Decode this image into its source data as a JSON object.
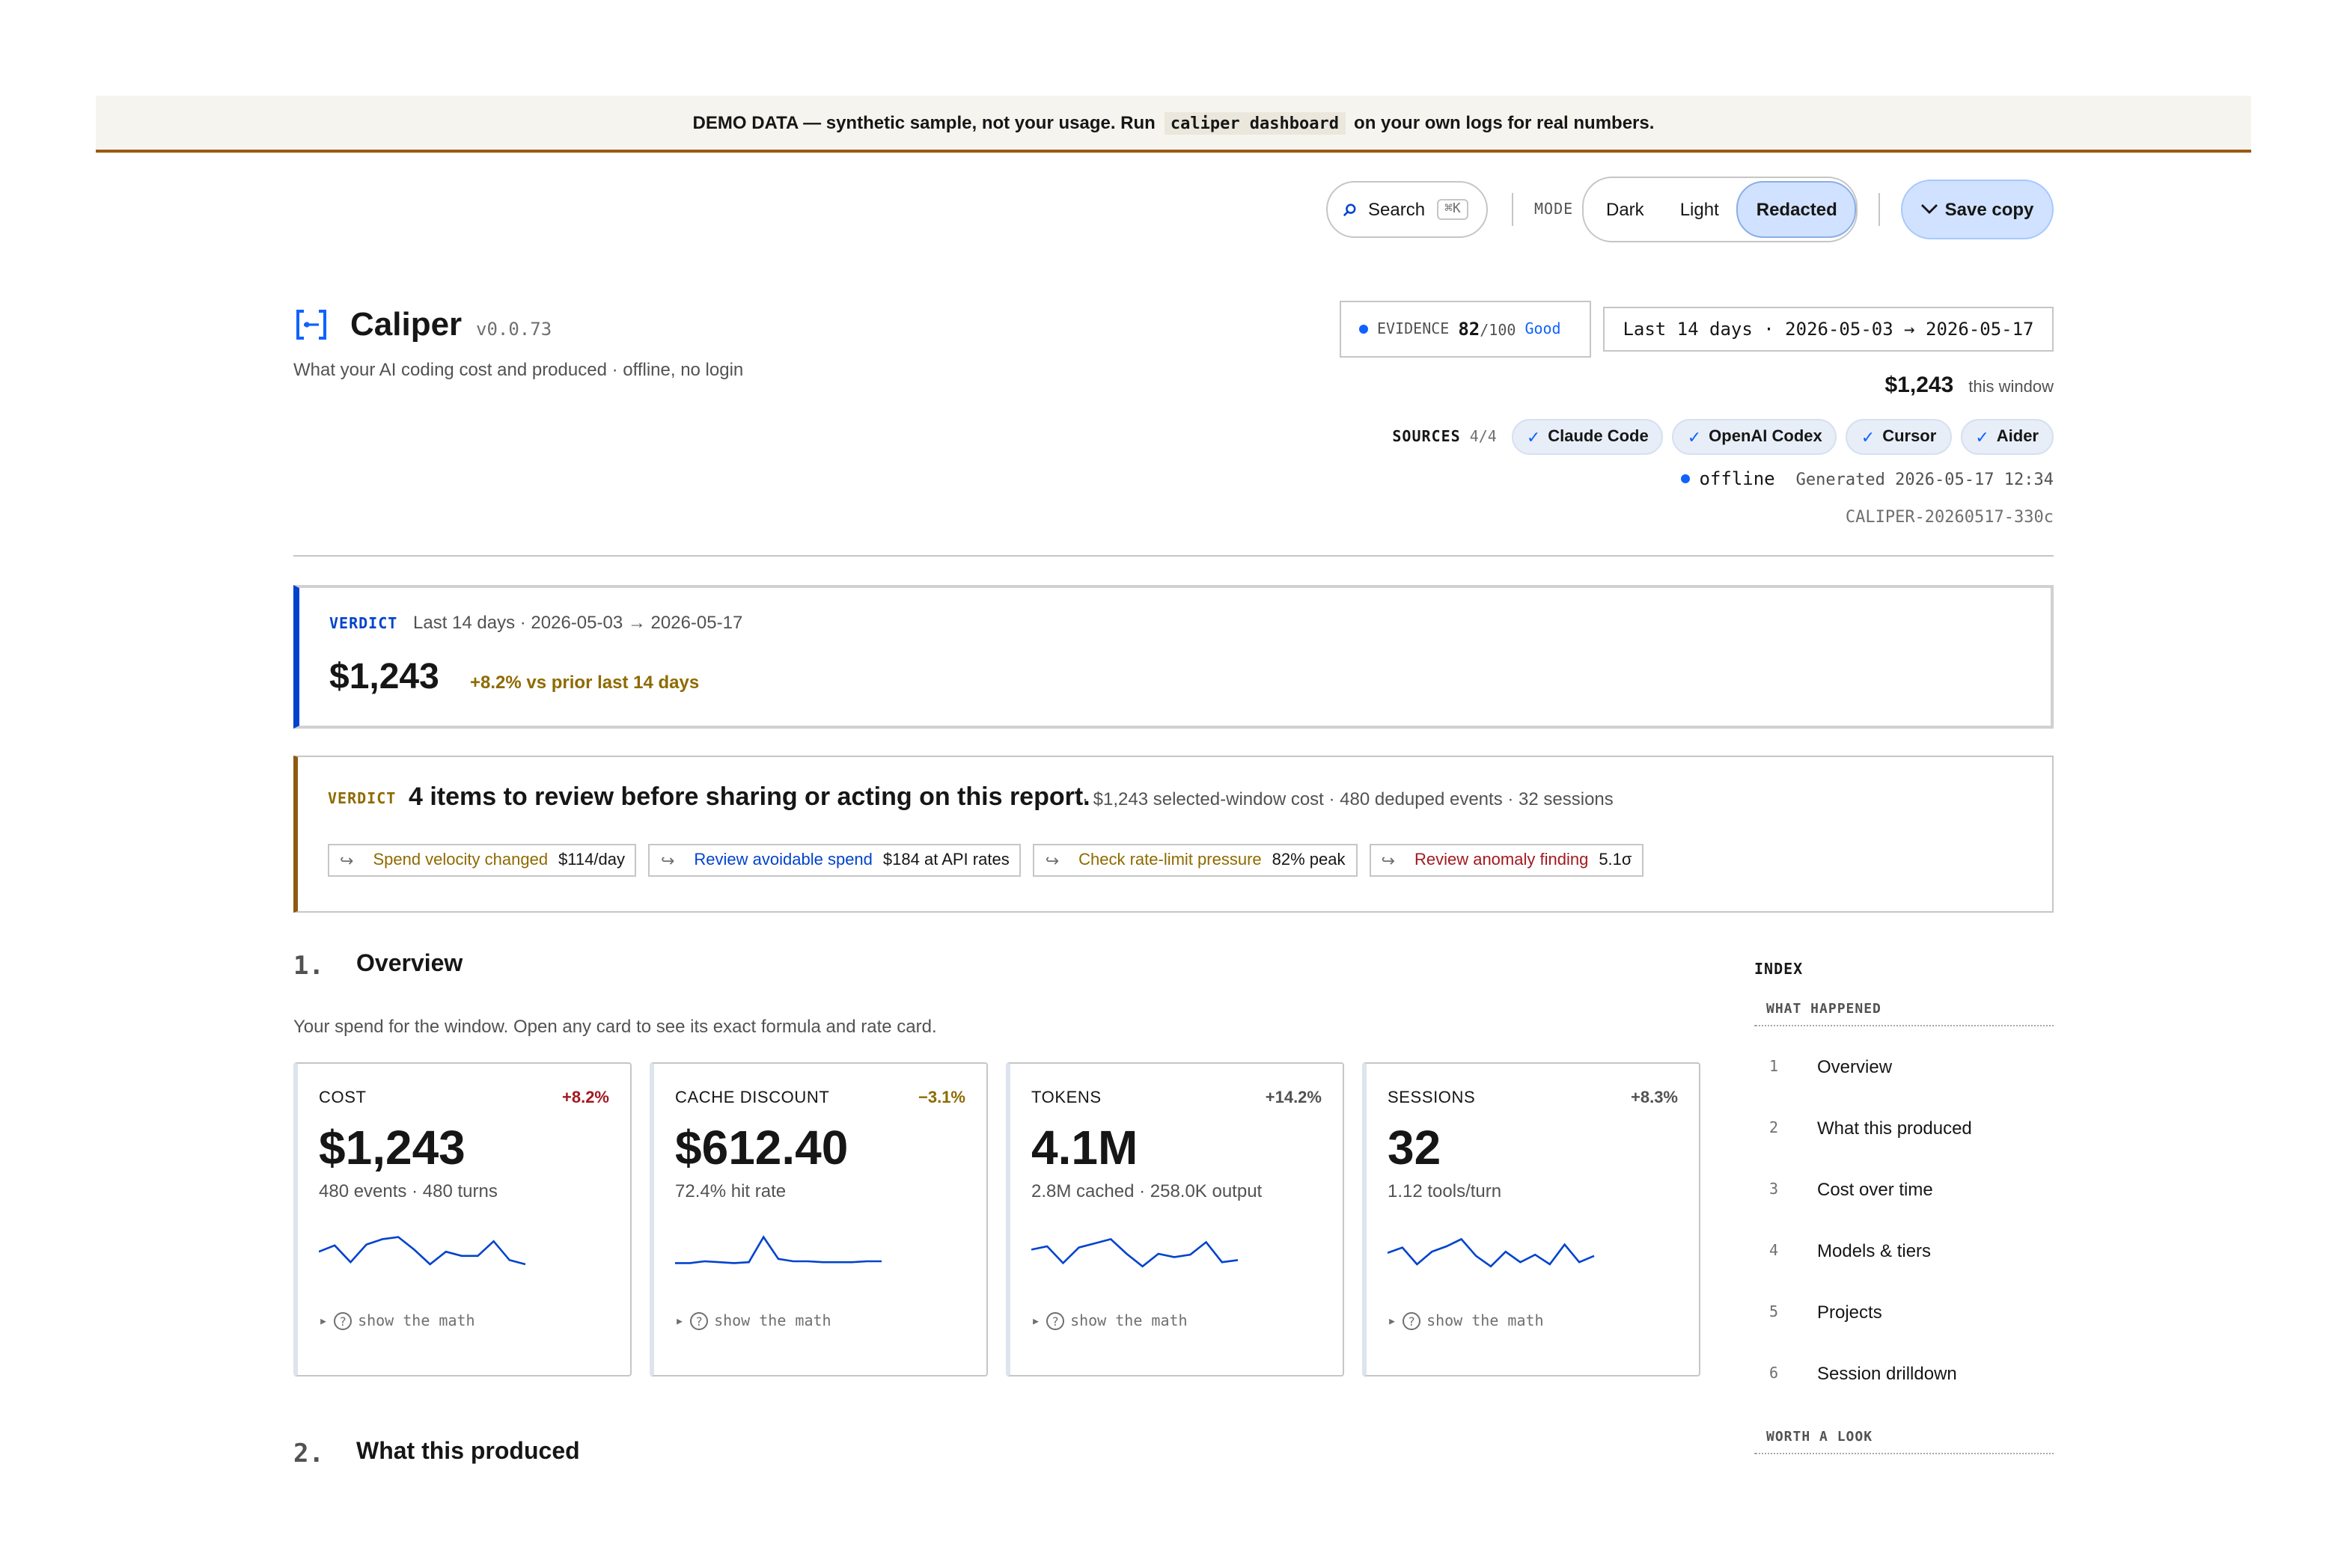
{
  "banner": {
    "prefix": "DEMO DATA — synthetic sample, not your usage. Run",
    "command": "caliper dashboard",
    "suffix": "on your own logs for real numbers."
  },
  "toolbar": {
    "search_label": "Search",
    "search_shortcut": "⌘K",
    "mode_label": "MODE",
    "modes": [
      "Dark",
      "Light",
      "Redacted"
    ],
    "active_mode": "Redacted",
    "save_label": "Save copy"
  },
  "header": {
    "app_name": "Caliper",
    "version": "v0.0.73",
    "tagline": "What your AI coding cost and produced · offline, no login",
    "evidence": {
      "label": "EVIDENCE",
      "score": "82",
      "max": "/100",
      "grade": "Good"
    },
    "window": "Last 14 days · 2026-05-03 → 2026-05-17",
    "window_cost": "$1,243",
    "window_cost_label": "this window",
    "sources_label": "SOURCES",
    "sources_count": "4/4",
    "sources": [
      "Claude Code",
      "OpenAI Codex",
      "Cursor",
      "Aider"
    ],
    "status": "offline",
    "generated": "Generated 2026-05-17 12:34",
    "report_id": "CALIPER-20260517-330c"
  },
  "verdict1": {
    "label": "VERDICT",
    "range": "Last 14 days · 2026-05-03 → 2026-05-17",
    "cost": "$1,243",
    "delta": "+8.2% vs prior last 14 days"
  },
  "verdict2": {
    "label": "VERDICT",
    "headline": "4 items to review before sharing or acting on this report.",
    "meta": "· $1,243 selected-window cost · 480 deduped events · 32 sessions",
    "items": [
      {
        "label": "Spend velocity changed",
        "value": "$114/day",
        "color": "#8e6a00"
      },
      {
        "label": "Review avoidable spend",
        "value": "$184 at API rates",
        "color": "#0043ce"
      },
      {
        "label": "Check rate-limit pressure",
        "value": "82% peak",
        "color": "#8e6a00"
      },
      {
        "label": "Review anomaly finding",
        "value": "5.1σ",
        "color": "#a2191f"
      }
    ]
  },
  "section1": {
    "number": "1.",
    "title": "Overview",
    "description": "Your spend for the window. Open any card to see its exact formula and rate card."
  },
  "section2": {
    "number": "2.",
    "title": "What this produced"
  },
  "cards": [
    {
      "label": "COST",
      "delta": "+8.2%",
      "delta_color": "#a2191f",
      "value": "$1,243",
      "sub": "480 events · 480 turns",
      "spark": [
        0.55,
        0.7,
        0.3,
        0.72,
        0.85,
        0.9,
        0.6,
        0.25,
        0.55,
        0.45,
        0.45,
        0.8,
        0.35,
        0.25
      ]
    },
    {
      "label": "CACHE DISCOUNT",
      "delta": "−3.1%",
      "delta_color": "#8e6a00",
      "value": "$612.40",
      "sub": "72.4% hit rate",
      "spark": [
        0.28,
        0.28,
        0.32,
        0.3,
        0.28,
        0.3,
        0.9,
        0.38,
        0.32,
        0.32,
        0.3,
        0.3,
        0.3,
        0.32,
        0.32
      ]
    },
    {
      "label": "TOKENS",
      "delta": "+14.2%",
      "delta_color": "#525252",
      "value": "4.1M",
      "sub": "2.8M cached · 258.0K output",
      "spark": [
        0.6,
        0.68,
        0.28,
        0.65,
        0.75,
        0.85,
        0.5,
        0.2,
        0.5,
        0.42,
        0.48,
        0.78,
        0.3,
        0.35
      ]
    },
    {
      "label": "SESSIONS",
      "delta": "+8.3%",
      "delta_color": "#525252",
      "value": "32",
      "sub": "1.12 tools/turn",
      "spark": [
        0.52,
        0.65,
        0.25,
        0.55,
        0.68,
        0.85,
        0.45,
        0.2,
        0.55,
        0.3,
        0.48,
        0.25,
        0.72,
        0.3,
        0.45
      ]
    }
  ],
  "card_math_label": "show the math",
  "index": {
    "title": "INDEX",
    "group1": "WHAT HAPPENED",
    "items": [
      {
        "n": "1",
        "label": "Overview"
      },
      {
        "n": "2",
        "label": "What this produced"
      },
      {
        "n": "3",
        "label": "Cost over time"
      },
      {
        "n": "4",
        "label": "Models & tiers"
      },
      {
        "n": "5",
        "label": "Projects"
      },
      {
        "n": "6",
        "label": "Session drilldown"
      }
    ],
    "group2": "WORTH A LOOK"
  },
  "colors": {
    "accent": "#0f62fe",
    "banner_border": "#9a5a10",
    "verdict_blue": "#0043ce",
    "verdict_amber": "#8e5a10"
  }
}
